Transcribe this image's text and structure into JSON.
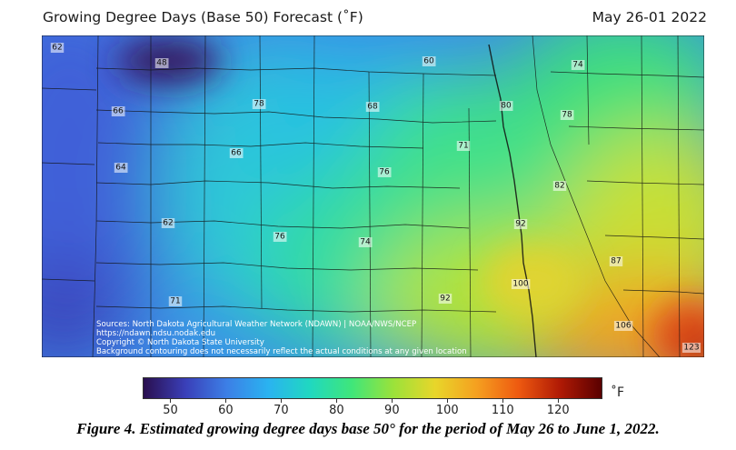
{
  "header": {
    "title": "Growing Degree Days (Base 50) Forecast (˚F)",
    "date_range": "May 26-01 2022"
  },
  "map": {
    "region": "North Dakota and surrounding area",
    "stations": [
      {
        "label": "62"
      },
      {
        "label": "48"
      },
      {
        "label": "60"
      },
      {
        "label": "74"
      },
      {
        "label": "66"
      },
      {
        "label": "78"
      },
      {
        "label": "68"
      },
      {
        "label": "80"
      },
      {
        "label": "78"
      },
      {
        "label": "71"
      },
      {
        "label": "66"
      },
      {
        "label": "64"
      },
      {
        "label": "76"
      },
      {
        "label": "82"
      },
      {
        "label": "62"
      },
      {
        "label": "92"
      },
      {
        "label": "76"
      },
      {
        "label": "74"
      },
      {
        "label": "87"
      },
      {
        "label": "100"
      },
      {
        "label": "92"
      },
      {
        "label": "71"
      },
      {
        "label": "106"
      },
      {
        "label": "123"
      }
    ],
    "sources": [
      "Sources: North Dakota Agricultural Weather Network (NDAWN) | NOAA/NWS/NCEP",
      "https://ndawn.ndsu.nodak.edu",
      "Copyright © North Dakota State University",
      "Background contouring does not necessarily reflect the actual conditions at any given location"
    ]
  },
  "colorbar": {
    "ticks": [
      "50",
      "60",
      "70",
      "80",
      "90",
      "100",
      "110",
      "120"
    ],
    "min": 45,
    "max": 128,
    "unit": "˚F",
    "colors": [
      "#2a0f4f",
      "#3a3fb8",
      "#3c7fe6",
      "#2ab3f0",
      "#20d8c0",
      "#3fe67a",
      "#9be23a",
      "#e8d62a",
      "#f5a020",
      "#ee5a10",
      "#b01a05",
      "#5a0000"
    ]
  },
  "caption": "Figure 4.   Estimated growing degree days base 50° for the period of May 26 to June 1, 2022."
}
